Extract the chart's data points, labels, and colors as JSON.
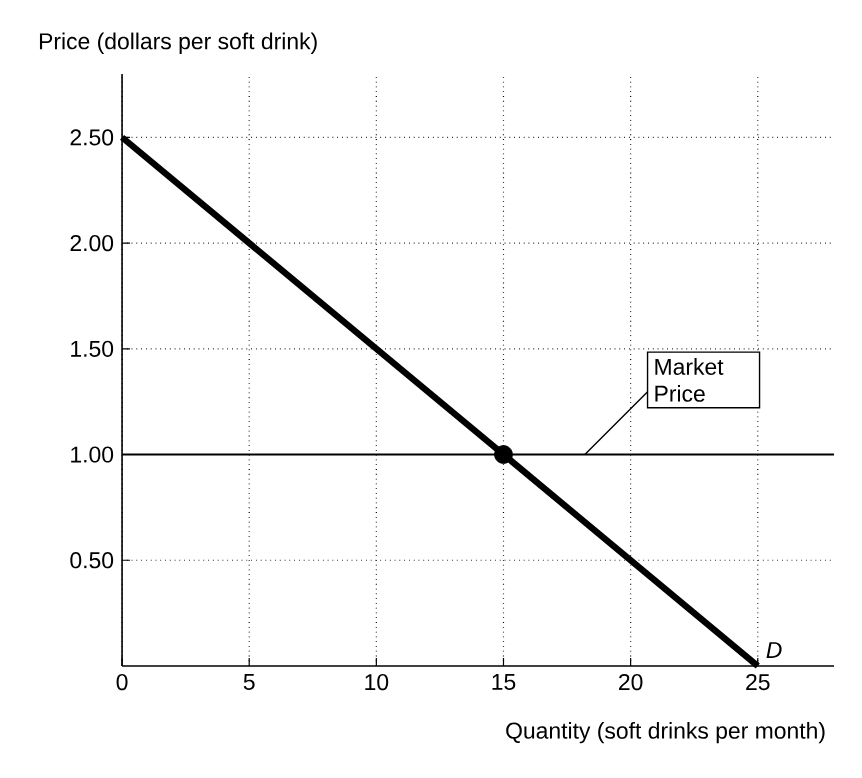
{
  "chart_data": {
    "type": "line",
    "xlabel": "Quantity (soft drinks per month)",
    "ylabel": "Price (dollars per soft drink)",
    "series": [
      {
        "color": "#000000",
        "x": [
          0,
          25
        ],
        "values": [
          2.5,
          0
        ],
        "marker": "none",
        "line_style": "solid"
      },
      {
        "type": "scatter",
        "color": "#000000",
        "x": [
          15
        ],
        "values": [
          1
        ],
        "marker": "circle"
      }
    ],
    "xlim": [
      0,
      28
    ],
    "ylim": [
      0,
      2.8
    ],
    "xticks": [
      0,
      5,
      10,
      15,
      20,
      25
    ],
    "yticks": [
      {
        "value": 0.5,
        "label": "0.50"
      },
      {
        "value": 1,
        "label": "1.00"
      },
      {
        "value": 1.5,
        "label": "1.50"
      },
      {
        "value": 2,
        "label": "2.00"
      },
      {
        "value": 2.5,
        "label": "2.50"
      }
    ],
    "ref_lines": [
      {
        "axis": "y",
        "value": 1,
        "label": "Market Price",
        "color": "#000000",
        "line_style": "solid"
      }
    ],
    "annotations": [
      {
        "text": "D",
        "x": 25,
        "y": 0
      }
    ],
    "grid": true
  }
}
